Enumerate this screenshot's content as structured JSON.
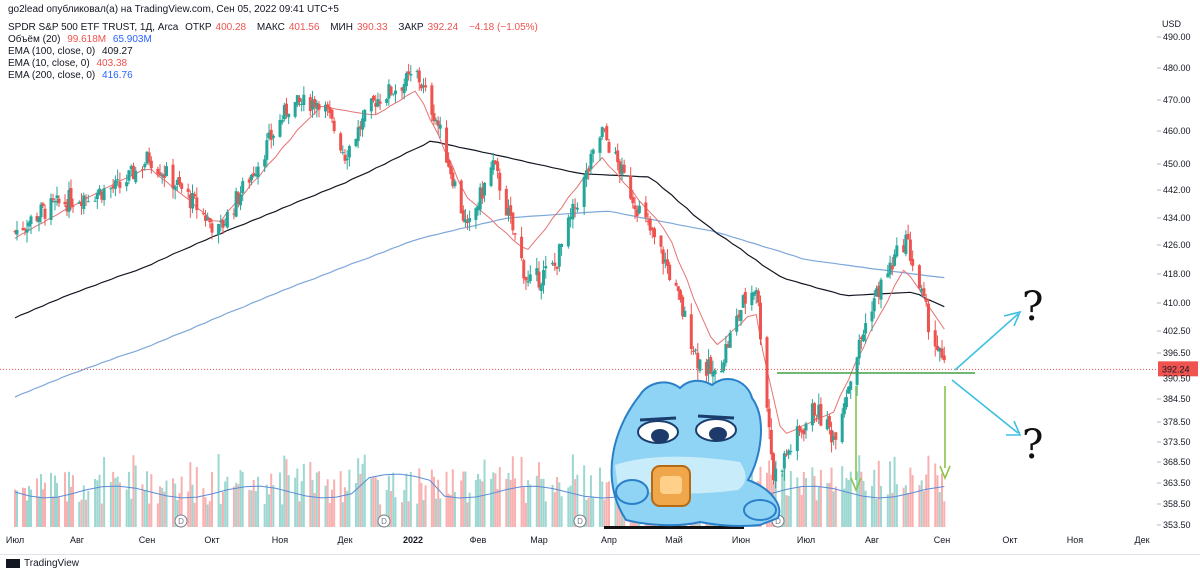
{
  "header": {
    "publisher": "go2lead опубликовал(а) на TradingView.com, Сен 05, 2022 09:41 UTC+5",
    "symbol": "SPDR S&P 500 ETF TRUST, 1Д, Arca",
    "open_label": "ОТКР",
    "open": "400.28",
    "high_label": "МАКС",
    "high": "401.56",
    "low_label": "МИН",
    "low": "390.33",
    "close_label": "ЗАКР",
    "close": "392.24",
    "change": "−4.18 (−1.05%)",
    "volume_label": "Объём (20)",
    "volume": "99.618M",
    "volume_ma": "65.903M",
    "ema100_label": "EMA (100, close, 0)",
    "ema100": "409.27",
    "ema10_label": "EMA (10, close, 0)",
    "ema10": "403.38",
    "ema200_label": "EMA (200, close, 0)",
    "ema200": "416.76"
  },
  "footer": {
    "brand": "TradingView"
  },
  "colors": {
    "up": "#26a69a",
    "down": "#ef5350",
    "ema10": "#e57373",
    "ema100": "#131722",
    "ema200": "#7da7d9",
    "price_tag": "#ef5350",
    "support": "#43a047",
    "arrow_down": "#8bc34a",
    "arrow_scenario": "#3ec1e0"
  },
  "chart_data": {
    "type": "candlestick",
    "currency": "USD",
    "y_ticks": [
      "490.00",
      "480.00",
      "470.00",
      "460.00",
      "450.00",
      "442.00",
      "434.00",
      "426.00",
      "418.00",
      "410.00",
      "402.50",
      "396.50",
      "390.50",
      "384.50",
      "378.50",
      "373.50",
      "368.50",
      "363.50",
      "358.50",
      "353.50"
    ],
    "x_ticks": [
      "Июл",
      "Авг",
      "Сен",
      "Окт",
      "Ноя",
      "Дек",
      "2022",
      "Фев",
      "Мар",
      "Апр",
      "Май",
      "Июн",
      "Июл",
      "Авг",
      "Сен",
      "Окт",
      "Ноя",
      "Дек"
    ],
    "last_price": "392.24",
    "last_price_sub": "390.50",
    "price_path": [
      [
        "2021-07-01",
        430
      ],
      [
        "2021-07-15",
        436
      ],
      [
        "2021-08-01",
        440
      ],
      [
        "2021-08-20",
        443
      ],
      [
        "2021-09-02",
        452
      ],
      [
        "2021-09-20",
        440
      ],
      [
        "2021-10-04",
        430
      ],
      [
        "2021-10-20",
        448
      ],
      [
        "2021-11-05",
        468
      ],
      [
        "2021-11-20",
        470
      ],
      [
        "2021-12-01",
        453
      ],
      [
        "2021-12-15",
        470
      ],
      [
        "2022-01-03",
        478
      ],
      [
        "2022-01-12",
        464
      ],
      [
        "2022-01-27",
        430
      ],
      [
        "2022-02-08",
        450
      ],
      [
        "2022-02-24",
        415
      ],
      [
        "2022-03-08",
        420
      ],
      [
        "2022-03-29",
        460
      ],
      [
        "2022-04-12",
        440
      ],
      [
        "2022-04-28",
        420
      ],
      [
        "2022-05-12",
        395
      ],
      [
        "2022-05-20",
        390
      ],
      [
        "2022-06-02",
        410
      ],
      [
        "2022-06-08",
        415
      ],
      [
        "2022-06-16",
        365
      ],
      [
        "2022-07-05",
        382
      ],
      [
        "2022-07-14",
        375
      ],
      [
        "2022-08-01",
        410
      ],
      [
        "2022-08-16",
        428
      ],
      [
        "2022-08-26",
        405
      ],
      [
        "2022-09-02",
        392
      ]
    ],
    "ema10_path": [
      [
        "2021-07-01",
        428
      ],
      [
        "2021-08-01",
        438
      ],
      [
        "2021-09-02",
        449
      ],
      [
        "2021-10-04",
        432
      ],
      [
        "2021-11-20",
        468
      ],
      [
        "2021-12-15",
        465
      ],
      [
        "2022-01-03",
        473
      ],
      [
        "2022-01-27",
        440
      ],
      [
        "2022-02-24",
        424
      ],
      [
        "2022-03-29",
        452
      ],
      [
        "2022-04-28",
        430
      ],
      [
        "2022-05-20",
        398
      ],
      [
        "2022-06-08",
        408
      ],
      [
        "2022-06-20",
        375
      ],
      [
        "2022-07-14",
        381
      ],
      [
        "2022-08-16",
        420
      ],
      [
        "2022-09-02",
        403
      ]
    ],
    "ema100_path": [
      [
        "2021-07-01",
        406
      ],
      [
        "2021-09-01",
        420
      ],
      [
        "2021-10-15",
        432
      ],
      [
        "2021-12-01",
        444
      ],
      [
        "2022-01-10",
        457
      ],
      [
        "2022-02-15",
        452
      ],
      [
        "2022-03-20",
        447
      ],
      [
        "2022-04-20",
        446
      ],
      [
        "2022-05-20",
        430
      ],
      [
        "2022-06-20",
        417
      ],
      [
        "2022-07-20",
        412
      ],
      [
        "2022-08-20",
        413
      ],
      [
        "2022-09-02",
        409
      ]
    ],
    "ema200_path": [
      [
        "2021-07-01",
        385
      ],
      [
        "2021-09-01",
        398
      ],
      [
        "2021-11-01",
        413
      ],
      [
        "2022-01-05",
        428
      ],
      [
        "2022-02-15",
        434
      ],
      [
        "2022-04-01",
        436
      ],
      [
        "2022-05-20",
        430
      ],
      [
        "2022-07-01",
        422
      ],
      [
        "2022-08-20",
        418
      ],
      [
        "2022-09-02",
        417
      ]
    ],
    "volume_scale_max": 160,
    "grid": false,
    "legend": "top-left"
  },
  "annotations": {
    "question_up": "?",
    "question_down": "?",
    "dividend_marker": "D"
  }
}
